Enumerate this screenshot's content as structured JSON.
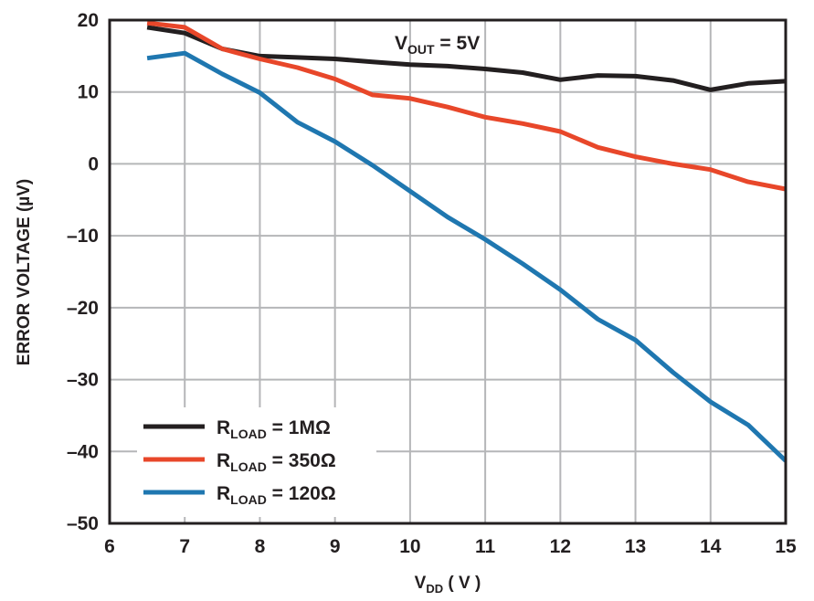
{
  "chart_data": {
    "type": "line",
    "xlabel": {
      "main": "V",
      "sub": "DD",
      "rest": " ( V )"
    },
    "ylabel": "ERROR VOLTAGE (µV)",
    "xlim": [
      6,
      15
    ],
    "ylim": [
      -50,
      20
    ],
    "xticks": [
      6,
      7,
      8,
      9,
      10,
      11,
      12,
      13,
      14,
      15
    ],
    "yticks": [
      20,
      10,
      0,
      -10,
      -20,
      -30,
      -40,
      -50
    ],
    "ytick_labels": [
      "20",
      "10",
      "0",
      "–10",
      "–20",
      "–30",
      "–40",
      "–50"
    ],
    "grid": true,
    "legend_position": "bottom-left",
    "annotation": {
      "main": "V",
      "sub": "OUT",
      "rest": " = 5V"
    },
    "series": [
      {
        "name": "R_LOAD = 1MΩ",
        "legend": {
          "main": "R",
          "sub": "LOAD",
          "rest": " = 1MΩ"
        },
        "color": "#231f20",
        "x": [
          6.5,
          7,
          7.5,
          8,
          8.5,
          9,
          9.5,
          10,
          10.5,
          11,
          11.5,
          12,
          12.5,
          13,
          13.5,
          14,
          14.5,
          15
        ],
        "y": [
          19,
          18.2,
          16,
          15,
          14.8,
          14.6,
          14.2,
          13.8,
          13.6,
          13.2,
          12.7,
          11.7,
          12.3,
          12.2,
          11.6,
          10.3,
          11.2,
          11.5
        ]
      },
      {
        "name": "R_LOAD = 350Ω",
        "legend": {
          "main": "R",
          "sub": "LOAD",
          "rest": " = 350Ω"
        },
        "color": "#e8472a",
        "x": [
          6.5,
          7,
          7.5,
          8,
          8.5,
          9,
          9.5,
          10,
          10.5,
          11,
          11.5,
          12,
          12.5,
          13,
          13.5,
          14,
          14.5,
          15
        ],
        "y": [
          19.6,
          19,
          16,
          14.6,
          13.4,
          11.8,
          9.6,
          9.1,
          7.9,
          6.5,
          5.6,
          4.5,
          2.3,
          1,
          0,
          -0.8,
          -2.5,
          -3.5
        ]
      },
      {
        "name": "R_LOAD = 120Ω",
        "legend": {
          "main": "R",
          "sub": "LOAD",
          "rest": " = 120Ω"
        },
        "color": "#1f77b0",
        "x": [
          6.5,
          7,
          7.5,
          8,
          8.5,
          9,
          9.5,
          10,
          10.5,
          11,
          11.5,
          12,
          12.5,
          13,
          13.5,
          14,
          14.5,
          15
        ],
        "y": [
          14.7,
          15.4,
          12.5,
          9.9,
          5.8,
          3.1,
          -0.2,
          -3.8,
          -7.4,
          -10.5,
          -13.9,
          -17.5,
          -21.6,
          -24.5,
          -29,
          -33.1,
          -36.3,
          -41.3
        ]
      }
    ]
  }
}
